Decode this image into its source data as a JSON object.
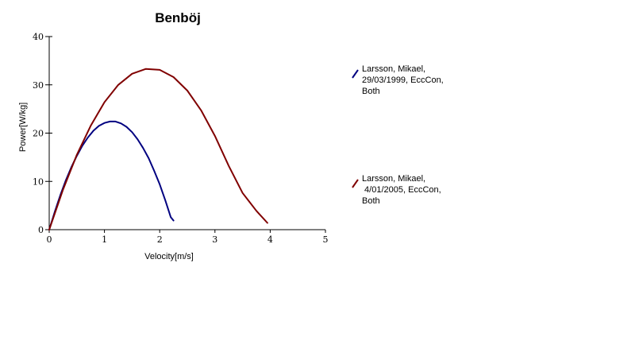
{
  "chart_data": {
    "type": "line",
    "title": "Benböj",
    "xlabel": "Velocity[m/s]",
    "ylabel": "Power[W/kg]",
    "xlim": [
      0,
      5
    ],
    "ylim": [
      0,
      40
    ],
    "xticks": [
      0,
      1,
      2,
      3,
      4,
      5
    ],
    "yticks": [
      0,
      10,
      20,
      30,
      40
    ],
    "grid": false,
    "legend_position": "right",
    "series": [
      {
        "name": "Larsson, Mikael, 29/03/1999, EccCon, Both",
        "legend_lines": [
          "Larsson, Mikael,",
          "29/03/1999, EccCon,",
          "Both"
        ],
        "color": "#000080",
        "x": [
          0,
          0.1,
          0.2,
          0.3,
          0.4,
          0.5,
          0.6,
          0.7,
          0.8,
          0.9,
          1.0,
          1.1,
          1.2,
          1.3,
          1.4,
          1.5,
          1.6,
          1.7,
          1.8,
          1.9,
          2.0,
          2.1,
          2.2,
          2.25
        ],
        "values": [
          0,
          3.7,
          7.1,
          10.2,
          12.9,
          15.3,
          17.4,
          19.1,
          20.5,
          21.5,
          22.1,
          22.4,
          22.4,
          22.0,
          21.3,
          20.2,
          18.7,
          16.9,
          14.8,
          12.2,
          9.4,
          6.1,
          2.6,
          1.9
        ]
      },
      {
        "name": "Larsson, Mikael, 4/01/2005, EccCon, Both",
        "legend_lines": [
          "Larsson, Mikael,",
          " 4/01/2005, EccCon,",
          "Both"
        ],
        "color": "#800000",
        "x": [
          0,
          0.25,
          0.5,
          0.75,
          1.0,
          1.25,
          1.5,
          1.75,
          2.0,
          2.25,
          2.5,
          2.75,
          3.0,
          3.25,
          3.5,
          3.75,
          3.95
        ],
        "values": [
          0,
          8.3,
          15.5,
          21.5,
          26.4,
          30.0,
          32.3,
          33.3,
          33.1,
          31.6,
          28.8,
          24.7,
          19.4,
          13.2,
          7.6,
          3.9,
          1.4
        ]
      }
    ]
  }
}
